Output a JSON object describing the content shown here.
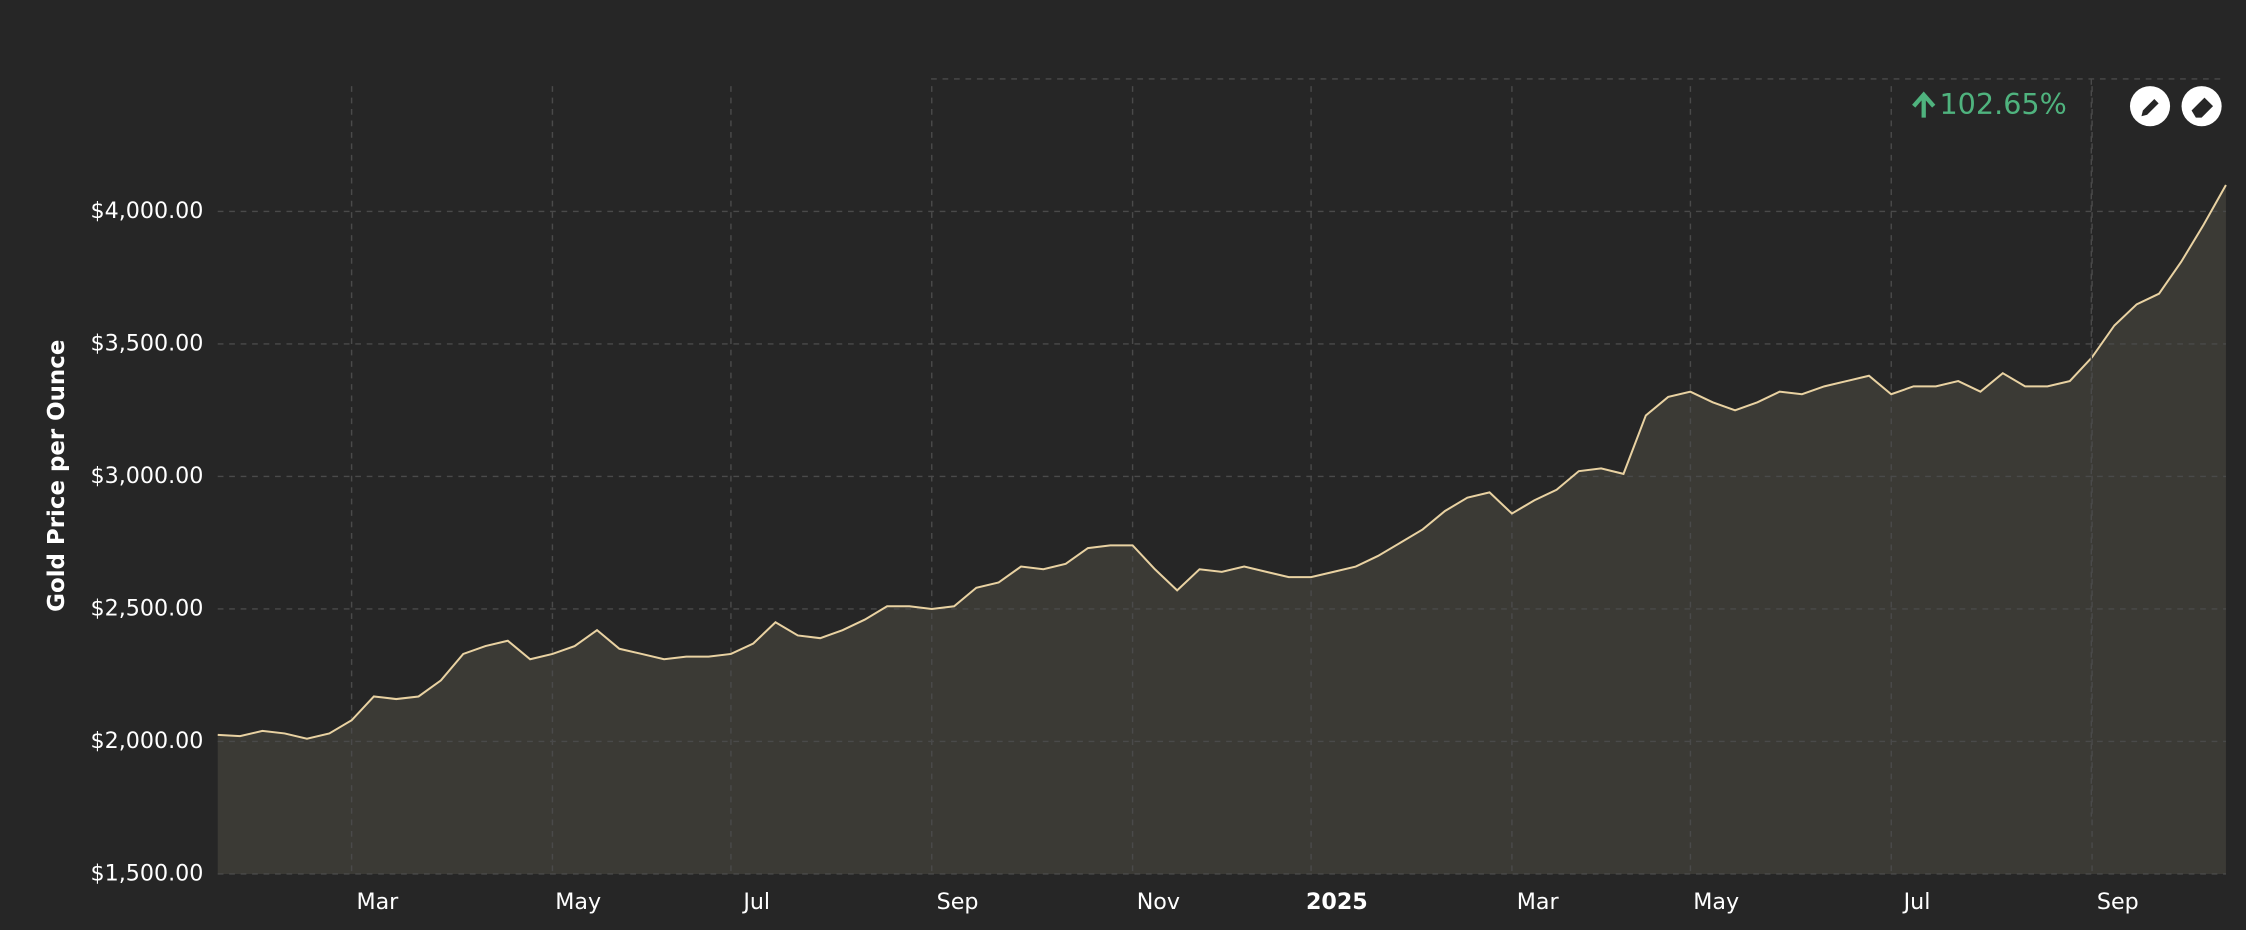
{
  "chart_data": {
    "type": "area",
    "y_label": "Gold Price per Ounce",
    "annotation": "102.65%",
    "categories": [
      null,
      null,
      null,
      null,
      null,
      null,
      "Mar",
      null,
      null,
      null,
      null,
      null,
      null,
      null,
      null,
      "May",
      null,
      null,
      null,
      null,
      null,
      null,
      null,
      "Jul",
      null,
      null,
      null,
      null,
      null,
      null,
      null,
      null,
      "Sep",
      null,
      null,
      null,
      null,
      null,
      null,
      null,
      null,
      "Nov",
      null,
      null,
      null,
      null,
      null,
      null,
      null,
      "2025",
      null,
      null,
      null,
      null,
      null,
      null,
      null,
      null,
      "Mar",
      null,
      null,
      null,
      null,
      null,
      null,
      null,
      "May",
      null,
      null,
      null,
      null,
      null,
      null,
      null,
      null,
      "Jul",
      null,
      null,
      null,
      null,
      null,
      null,
      null,
      null,
      "Sep",
      null,
      null,
      null,
      null,
      null,
      null
    ],
    "values": [
      2025,
      2020,
      2040,
      2030,
      2010,
      2030,
      2080,
      2170,
      2160,
      2170,
      2230,
      2330,
      2360,
      2380,
      2310,
      2330,
      2360,
      2420,
      2350,
      2330,
      2310,
      2320,
      2320,
      2330,
      2370,
      2450,
      2400,
      2390,
      2420,
      2460,
      2510,
      2510,
      2500,
      2510,
      2580,
      2600,
      2660,
      2650,
      2670,
      2730,
      2740,
      2740,
      2650,
      2570,
      2650,
      2640,
      2660,
      2640,
      2620,
      2620,
      2640,
      2660,
      2700,
      2750,
      2800,
      2870,
      2920,
      2940,
      2860,
      2910,
      2950,
      3020,
      3030,
      3010,
      3230,
      3300,
      3320,
      3280,
      3250,
      3280,
      3320,
      3310,
      3340,
      3360,
      3380,
      3310,
      3340,
      3340,
      3360,
      3320,
      3390,
      3340,
      3340,
      3360,
      3450,
      3570,
      3650,
      3690,
      3810,
      3950,
      4100
    ],
    "color": "#e9d2a2",
    "fill": "#3b3a35",
    "annotation_color": "#4fb37e",
    "ylim": [
      1500,
      4500
    ],
    "yticks": [
      {
        "value": 1500,
        "label": "$1,500.00"
      },
      {
        "value": 2000,
        "label": "$2,000.00"
      },
      {
        "value": 2500,
        "label": "$2,500.00"
      },
      {
        "value": 3000,
        "label": "$3,000.00"
      },
      {
        "value": 3500,
        "label": "$3,500.00"
      },
      {
        "value": 4000,
        "label": "$4,000.00"
      }
    ],
    "grid": true
  }
}
